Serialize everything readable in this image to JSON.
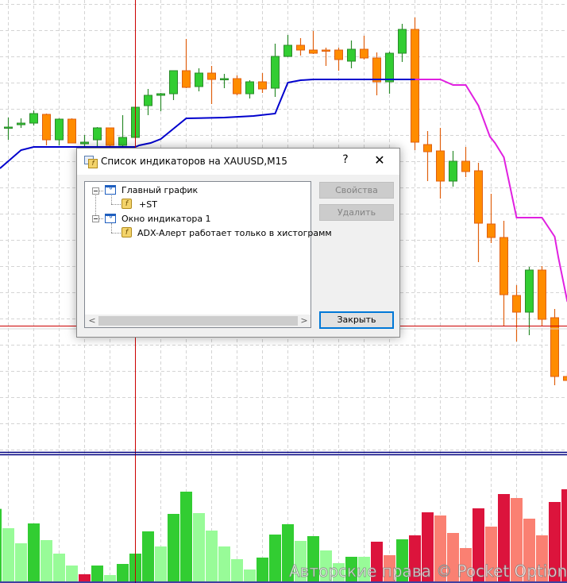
{
  "dialog": {
    "title": "Список индикаторов на XAUUSD,M15",
    "help_label": "?",
    "close_label": "✕",
    "tree": [
      {
        "label": "Главный график",
        "icon": "chart-window-icon",
        "children": [
          {
            "label": "+ST",
            "icon": "custom-indicator-icon"
          }
        ]
      },
      {
        "label": "Окно индикатора 1",
        "icon": "chart-window-icon",
        "children": [
          {
            "label": "ADX-Алерт работает только в хистограмм",
            "icon": "custom-indicator-icon"
          }
        ]
      }
    ],
    "buttons": {
      "properties": "Свойства",
      "delete": "Удалить",
      "close": "Закрыть"
    },
    "scroll_left": "<",
    "scroll_right": ">"
  },
  "watermark": "Авторские права © Pocket Option",
  "colors": {
    "bull": "#32CD32",
    "bear": "#FF8C00",
    "supertrend_up": "#0000CD",
    "supertrend_down": "#E020E0",
    "hist_strong_up": "#32CD32",
    "hist_weak_up": "#98FB98",
    "hist_strong_down": "#DC143C",
    "hist_weak_down": "#FA8072",
    "crosshair": "#CC0000",
    "separator": "#000080"
  },
  "chart_data": [
    {
      "type": "candlestick",
      "symbol_timeframe": "XAUUSD,M15",
      "ohlc": [
        [
          439,
          452,
          424,
          440
        ],
        [
          443,
          451,
          439,
          445
        ],
        [
          445,
          461,
          442,
          457
        ],
        [
          456,
          457,
          417,
          424
        ],
        [
          424,
          451,
          417,
          450
        ],
        [
          450,
          451,
          420,
          420
        ],
        [
          419,
          430,
          413,
          421
        ],
        [
          424,
          440,
          411,
          439
        ],
        [
          439,
          439,
          410,
          417
        ],
        [
          417,
          455,
          410,
          427
        ],
        [
          427,
          465,
          426,
          465
        ],
        [
          467,
          488,
          455,
          480
        ],
        [
          480,
          483,
          460,
          482
        ],
        [
          482,
          511,
          474,
          511
        ],
        [
          511,
          551,
          489,
          490
        ],
        [
          491,
          514,
          485,
          508
        ],
        [
          508,
          517,
          469,
          500
        ],
        [
          500,
          507,
          489,
          501
        ],
        [
          501,
          505,
          480,
          482
        ],
        [
          482,
          499,
          476,
          497
        ],
        [
          497,
          508,
          483,
          488
        ],
        [
          489,
          545,
          478,
          529
        ],
        [
          529,
          556,
          528,
          543
        ],
        [
          543,
          552,
          530,
          537
        ],
        [
          537,
          561,
          532,
          533
        ],
        [
          537,
          540,
          517,
          536
        ],
        [
          537,
          540,
          511,
          525
        ],
        [
          523,
          549,
          514,
          538
        ],
        [
          538,
          555,
          525,
          527
        ],
        [
          527,
          534,
          480,
          497
        ],
        [
          497,
          535,
          482,
          533
        ],
        [
          533,
          570,
          522,
          563
        ],
        [
          563,
          578,
          411,
          421
        ],
        [
          418,
          435,
          372,
          409
        ],
        [
          410,
          439,
          350,
          372
        ],
        [
          372,
          410,
          365,
          397
        ],
        [
          397,
          415,
          377,
          384
        ],
        [
          385,
          395,
          270,
          319
        ],
        [
          318,
          356,
          294,
          301
        ],
        [
          301,
          322,
          190,
          229
        ],
        [
          228,
          241,
          170,
          207
        ],
        [
          207,
          264,
          178,
          260
        ],
        [
          260,
          265,
          190,
          198
        ],
        [
          200,
          211,
          115,
          126
        ],
        [
          126,
          130,
          121,
          121
        ]
      ],
      "supertrend_up": [
        [
          -0.66,
          388
        ],
        [
          1,
          411
        ],
        [
          2,
          415
        ],
        [
          10,
          415
        ],
        [
          10.3,
          417
        ],
        [
          11.2,
          420
        ],
        [
          12,
          425
        ],
        [
          14,
          451
        ],
        [
          17,
          452
        ],
        [
          19.3,
          454
        ],
        [
          21,
          457
        ],
        [
          21.2,
          465
        ],
        [
          22,
          496
        ],
        [
          23,
          499
        ],
        [
          24,
          500
        ],
        [
          32,
          500
        ]
      ],
      "supertrend_down": [
        [
          32,
          500
        ],
        [
          34,
          500
        ],
        [
          35,
          493
        ],
        [
          36,
          493
        ],
        [
          37,
          467
        ],
        [
          37.9,
          428
        ],
        [
          38.3,
          420
        ],
        [
          39,
          402
        ],
        [
          40,
          326
        ],
        [
          42,
          326
        ],
        [
          43,
          302
        ],
        [
          43.3,
          275
        ],
        [
          44,
          220
        ]
      ],
      "grid": true
    },
    {
      "type": "bar",
      "values": [
        274,
        201,
        144,
        219,
        156,
        105,
        60,
        27,
        60,
        24,
        66,
        105,
        189,
        132,
        255,
        339,
        258,
        192,
        132,
        84,
        45,
        90,
        177,
        216,
        153,
        171,
        117,
        69,
        93,
        93,
        150,
        99,
        159,
        174,
        261,
        249,
        183,
        126,
        276,
        207,
        330,
        315,
        237,
        174,
        300,
        348
      ],
      "color_class": [
        "su",
        "wu",
        "wu",
        "su",
        "wu",
        "wu",
        "wu",
        "sd",
        "su",
        "wu",
        "su",
        "su",
        "su",
        "wu",
        "su",
        "su",
        "wu",
        "wu",
        "wu",
        "wu",
        "wu",
        "su",
        "su",
        "su",
        "wu",
        "su",
        "wu",
        "wu",
        "su",
        "wu",
        "sd",
        "wd",
        "su",
        "sd",
        "sd",
        "wd",
        "wd",
        "wd",
        "sd",
        "wd",
        "sd",
        "wd",
        "wd",
        "wd",
        "sd",
        "sd"
      ],
      "grid": true
    }
  ]
}
